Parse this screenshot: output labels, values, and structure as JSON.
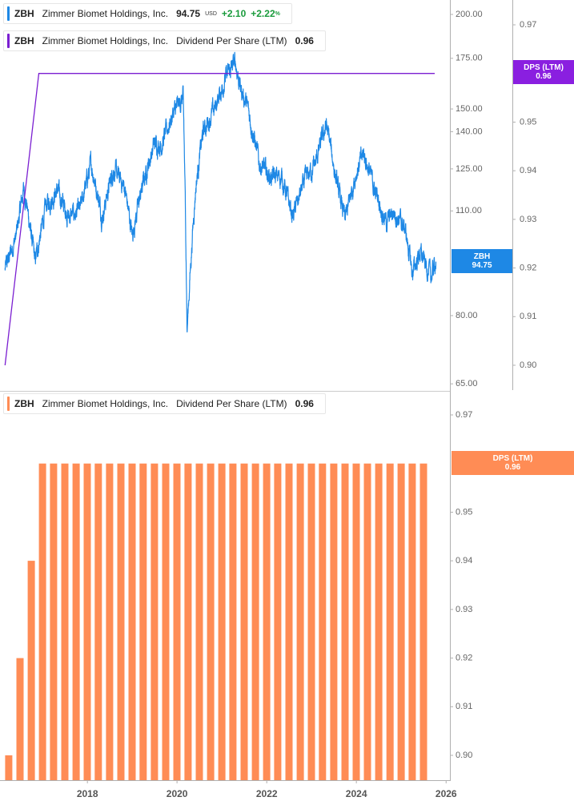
{
  "legend_price": {
    "symbol": "ZBH",
    "name": "Zimmer Biomet Holdings, Inc.",
    "price": "94.75",
    "currency": "USD",
    "change": "+2.10",
    "change_pct": "+2.22",
    "pct_sign": "%"
  },
  "legend_dps_top": {
    "symbol": "ZBH",
    "name": "Zimmer Biomet Holdings, Inc.",
    "metric": "Dividend Per Share (LTM)",
    "value": "0.96"
  },
  "legend_dps_bottom": {
    "symbol": "ZBH",
    "name": "Zimmer Biomet Holdings, Inc.",
    "metric": "Dividend Per Share (LTM)",
    "value": "0.96"
  },
  "badges": {
    "dps_top": {
      "label": "DPS (LTM)",
      "value": "0.96"
    },
    "zbh": {
      "label": "ZBH",
      "value": "94.75"
    },
    "dps_bottom": {
      "label": "DPS (LTM)",
      "value": "0.96"
    }
  },
  "colors": {
    "price_line": "#1e88e5",
    "dps_line": "#7b1fd1",
    "dps_bar": "#ff8c55",
    "positive": "#1a9b3c",
    "axis_text": "#666666"
  },
  "chart_data": [
    {
      "type": "line",
      "scale": "log",
      "series": [
        {
          "name": "ZBH",
          "x": [
            "2016-03-01",
            "2016-06-01",
            "2016-08-01",
            "2016-11-01",
            "2017-02-01",
            "2017-05-01",
            "2017-08-01",
            "2017-11-01",
            "2018-02-01",
            "2018-05-01",
            "2018-08-01",
            "2018-11-01",
            "2019-01-01",
            "2019-04-01",
            "2019-07-01",
            "2019-09-01",
            "2019-12-01",
            "2020-02-20",
            "2020-03-23",
            "2020-06-01",
            "2020-08-01",
            "2020-11-01",
            "2021-02-01",
            "2021-04-20",
            "2021-06-01",
            "2021-08-01",
            "2021-11-01",
            "2022-02-01",
            "2022-05-01",
            "2022-08-01",
            "2022-11-01",
            "2023-02-01",
            "2023-05-01",
            "2023-08-01",
            "2023-10-01",
            "2024-01-01",
            "2024-03-01",
            "2024-06-01",
            "2024-09-01",
            "2024-11-01",
            "2025-02-01",
            "2025-04-01",
            "2025-06-01",
            "2025-09-01",
            "2025-10-10"
          ],
          "values": [
            92,
            102,
            118,
            94,
            112,
            117,
            108,
            110,
            127,
            108,
            125,
            118,
            102,
            120,
            135,
            135,
            148,
            155,
            76,
            118,
            140,
            150,
            165,
            173,
            160,
            150,
            127,
            122,
            122,
            108,
            120,
            127,
            143,
            118,
            107,
            124,
            131,
            117,
            106,
            110,
            104,
            91,
            97,
            90,
            94.75
          ]
        }
      ],
      "yticks": [
        65,
        80,
        110,
        125,
        140,
        150,
        175,
        200
      ],
      "ylim": [
        64,
        205
      ]
    },
    {
      "type": "line",
      "series": [
        {
          "name": "Dividend Per Share (LTM)",
          "x": [
            "2016-03-01",
            "2016-06-01",
            "2016-09-01",
            "2016-12-01",
            "2025-09-30"
          ],
          "values": [
            0.9,
            0.92,
            0.94,
            0.96,
            0.96
          ]
        }
      ],
      "yticks": [
        0.9,
        0.91,
        0.92,
        0.93,
        0.94,
        0.95,
        0.97
      ],
      "ylim": [
        0.8985,
        0.9722
      ]
    },
    {
      "type": "bar",
      "series": [
        {
          "name": "Dividend Per Share (LTM)",
          "first_quarter": "2016-03-31",
          "values": [
            0.9,
            0.92,
            0.94,
            0.96,
            0.96,
            0.96,
            0.96,
            0.96,
            0.96,
            0.96,
            0.96,
            0.96,
            0.96,
            0.96,
            0.96,
            0.96,
            0.96,
            0.96,
            0.96,
            0.96,
            0.96,
            0.96,
            0.96,
            0.96,
            0.96,
            0.96,
            0.96,
            0.96,
            0.96,
            0.96,
            0.96,
            0.96,
            0.96,
            0.96,
            0.96,
            0.96,
            0.96,
            0.96
          ]
        }
      ],
      "yticks": [
        0.9,
        0.91,
        0.92,
        0.93,
        0.94,
        0.95,
        0.97
      ],
      "ylim": [
        0.8945,
        0.9722
      ]
    }
  ],
  "x_axis": {
    "ticks": [
      "2018",
      "2020",
      "2022",
      "2024",
      "2026"
    ],
    "xlim": [
      "2016-01-20",
      "2026-02-01"
    ]
  }
}
